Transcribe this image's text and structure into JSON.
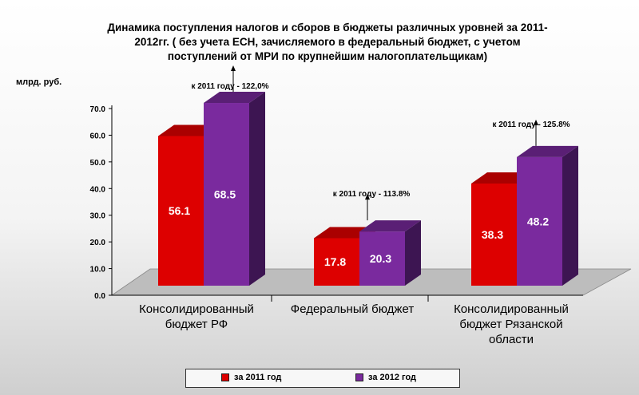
{
  "chart_data": {
    "type": "bar",
    "title": "Динамика поступления налогов и сборов в бюджеты различных уровней за 2011-2012гг.  ( без учета ЕСН, зачисляемого в федеральный бюджет,  с  учетом поступлений от  МРИ по крупнейшим налогоплательщикам)",
    "ylabel": "млрд. руб.",
    "ylim": [
      0,
      70
    ],
    "yticks": [
      "0.0",
      "10.0",
      "20.0",
      "30.0",
      "40.0",
      "50.0",
      "60.0",
      "70.0"
    ],
    "categories": [
      [
        "Консолидированный",
        "бюджет РФ"
      ],
      [
        "Федеральный бюджет"
      ],
      [
        "Консолидированный",
        "бюджет Рязанской",
        "области"
      ]
    ],
    "series": [
      {
        "name": "за 2011 год",
        "values": [
          56.1,
          17.8,
          38.3
        ],
        "labels": [
          "56.1",
          "17.8",
          "38.3"
        ],
        "color": "#dd0000",
        "side": "#990000",
        "top": "#aa0000"
      },
      {
        "name": "за  2012 год",
        "values": [
          68.5,
          20.3,
          48.2
        ],
        "labels": [
          "68.5",
          "20.3",
          "48.2"
        ],
        "color": "#7a2a9e",
        "side": "#3d1552",
        "top": "#5a1f75"
      }
    ],
    "annotations": [
      "к 2011 году - 122,0%",
      "к  2011 году - 113.8%",
      "к  2011 году - 125.8%"
    ],
    "legend_position": "bottom",
    "grid": false
  }
}
